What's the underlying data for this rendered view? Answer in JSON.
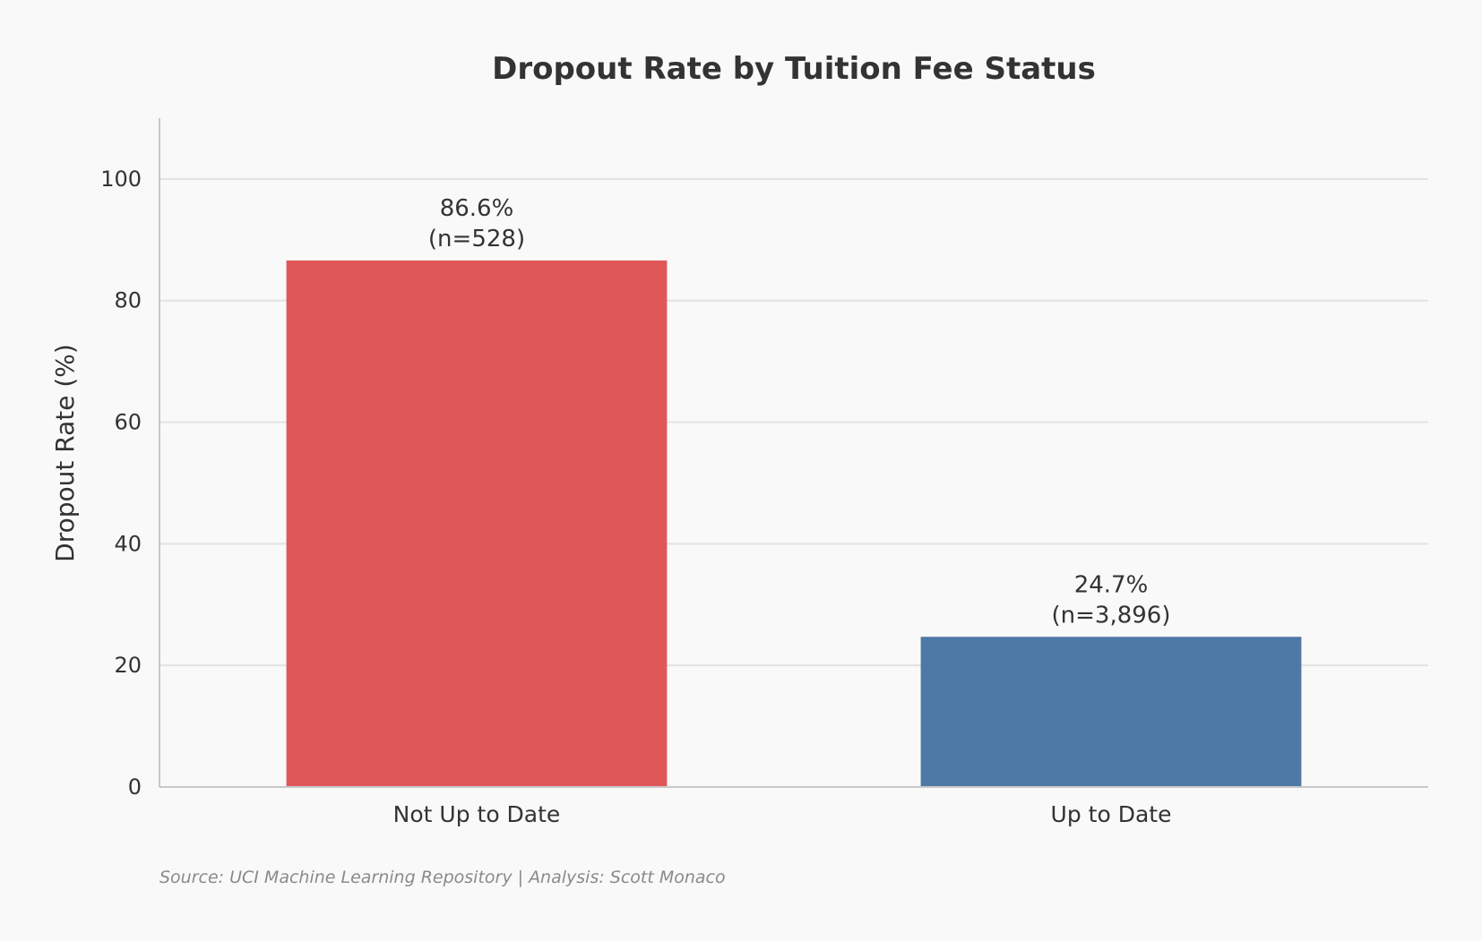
{
  "chart_data": {
    "type": "bar",
    "title": "Dropout Rate by Tuition Fee Status",
    "xlabel": "",
    "ylabel": "Dropout Rate (%)",
    "categories": [
      "Not Up to Date",
      "Up to Date"
    ],
    "values": [
      86.6,
      24.7
    ],
    "value_labels": [
      "86.6%",
      "24.7%"
    ],
    "count_labels": [
      "(n=528)",
      "(n=3,896)"
    ],
    "colors": [
      "#e0575a",
      "#4e78a5"
    ],
    "ylim": [
      0,
      110
    ],
    "yticks": [
      0,
      20,
      40,
      60,
      80,
      100
    ],
    "grid": true,
    "source": "Source: UCI Machine Learning Repository | Analysis: Scott Monaco"
  },
  "colors": {
    "background": "#f9f9f9",
    "text": "#333333",
    "grid": "#e2e2e2",
    "axis": "#c8c8c8",
    "source_text": "#8a8a8a"
  }
}
